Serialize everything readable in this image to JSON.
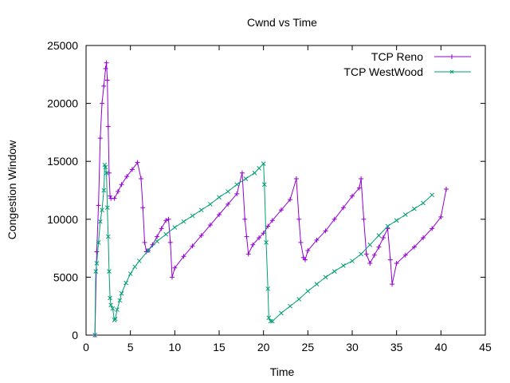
{
  "chart_data": {
    "type": "line",
    "title": "Cwnd vs Time",
    "xlabel": "Time",
    "ylabel": "Congestion Window",
    "xlim": [
      0,
      45
    ],
    "ylim": [
      0,
      25000
    ],
    "xticks": [
      0,
      5,
      10,
      15,
      20,
      25,
      30,
      35,
      40,
      45
    ],
    "yticks": [
      0,
      5000,
      10000,
      15000,
      20000,
      25000
    ],
    "grid": false,
    "legend_position": "top-right",
    "series": [
      {
        "name": "TCP Reno",
        "color": "#9400D3",
        "marker": "plus",
        "x": [
          1.0,
          1.2,
          1.4,
          1.6,
          1.8,
          2.0,
          2.2,
          2.3,
          2.4,
          2.5,
          2.6,
          2.7,
          2.8,
          3.2,
          3.6,
          4.0,
          4.6,
          5.2,
          5.8,
          6.2,
          6.4,
          6.6,
          6.8,
          7.0,
          7.5,
          8.0,
          8.5,
          9.0,
          9.3,
          9.5,
          9.7,
          10.0,
          11.0,
          12.0,
          13.0,
          14.0,
          15.0,
          16.0,
          17.0,
          17.6,
          17.9,
          18.1,
          18.3,
          18.8,
          19.5,
          20.0,
          20.5,
          21.0,
          22.0,
          23.0,
          23.7,
          24.0,
          24.2,
          24.5,
          24.7,
          25.0,
          26.0,
          27.0,
          28.0,
          29.0,
          30.0,
          30.8,
          31.0,
          31.3,
          31.6,
          32.0,
          32.5,
          33.0,
          33.5,
          34.0,
          34.3,
          34.5,
          35.0,
          36.0,
          37.0,
          38.0,
          39.0,
          40.0,
          40.6
        ],
        "y": [
          0,
          7200,
          11200,
          17000,
          20000,
          21500,
          23000,
          23500,
          22000,
          18000,
          14000,
          12000,
          11800,
          11800,
          12400,
          13000,
          13700,
          14300,
          14900,
          13500,
          11000,
          8000,
          7200,
          7300,
          7800,
          8500,
          9200,
          9900,
          10000,
          8000,
          5000,
          5800,
          6800,
          7700,
          8600,
          9500,
          10400,
          11300,
          12200,
          14000,
          10000,
          8500,
          7000,
          7800,
          8400,
          8800,
          9400,
          9900,
          10800,
          11700,
          13500,
          10000,
          8000,
          6700,
          6500,
          7300,
          8200,
          9000,
          10000,
          11000,
          12000,
          12700,
          13500,
          10000,
          7000,
          6200,
          6900,
          7600,
          8400,
          9200,
          6500,
          4400,
          6200,
          6900,
          7600,
          8400,
          9200,
          10200,
          12600
        ]
      },
      {
        "name": "TCP WestWood",
        "color": "#009E73",
        "marker": "cross",
        "x": [
          1.0,
          1.1,
          1.2,
          1.4,
          1.6,
          1.8,
          2.0,
          2.1,
          2.2,
          2.3,
          2.4,
          2.5,
          2.6,
          2.7,
          2.8,
          3.0,
          3.2,
          3.3,
          3.5,
          3.8,
          4.0,
          4.5,
          5.0,
          5.5,
          6.0,
          7.0,
          8.0,
          9.0,
          10.0,
          11.0,
          12.0,
          13.0,
          14.0,
          15.0,
          16.0,
          17.0,
          18.0,
          19.0,
          19.5,
          20.0,
          20.1,
          20.3,
          20.5,
          20.6,
          20.8,
          21.0,
          22.0,
          23.0,
          24.0,
          25.0,
          26.0,
          27.0,
          28.0,
          29.0,
          30.0,
          31.0,
          32.0,
          33.0,
          34.0,
          35.0,
          36.0,
          37.0,
          38.0,
          39.0
        ],
        "y": [
          0,
          5500,
          6200,
          8000,
          9800,
          10800,
          12500,
          14700,
          14500,
          14000,
          11000,
          8500,
          5500,
          3200,
          2600,
          2300,
          1300,
          1400,
          2200,
          3000,
          3600,
          4500,
          5300,
          5900,
          6400,
          7300,
          8100,
          8700,
          9300,
          9800,
          10300,
          10800,
          11300,
          11900,
          12400,
          13000,
          13500,
          14000,
          14400,
          14800,
          13000,
          8000,
          4000,
          1500,
          1200,
          1200,
          1900,
          2500,
          3100,
          3800,
          4400,
          5000,
          5500,
          6000,
          6400,
          7000,
          7800,
          8600,
          9400,
          9900,
          10400,
          10900,
          11400,
          12100
        ]
      }
    ]
  }
}
